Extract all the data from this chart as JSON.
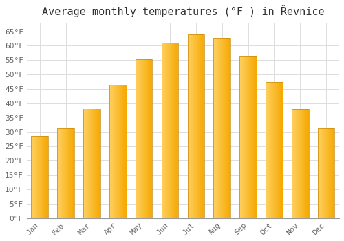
{
  "title": "Average monthly temperatures (°F ) in Řevnice",
  "months": [
    "Jan",
    "Feb",
    "Mar",
    "Apr",
    "May",
    "Jun",
    "Jul",
    "Aug",
    "Sep",
    "Oct",
    "Nov",
    "Dec"
  ],
  "values": [
    28.4,
    31.3,
    38.1,
    46.4,
    55.2,
    61.0,
    64.0,
    62.8,
    56.3,
    47.3,
    37.9,
    31.3
  ],
  "bar_color_dark": "#F5A800",
  "bar_color_light": "#FFD060",
  "bar_edge_color": "#C8880A",
  "background_color": "#FFFFFF",
  "grid_color": "#DDDDDD",
  "text_color": "#666666",
  "title_color": "#333333",
  "title_fontsize": 11,
  "tick_fontsize": 8,
  "ylim_min": 0,
  "ylim_max": 68,
  "ytick_step": 5
}
